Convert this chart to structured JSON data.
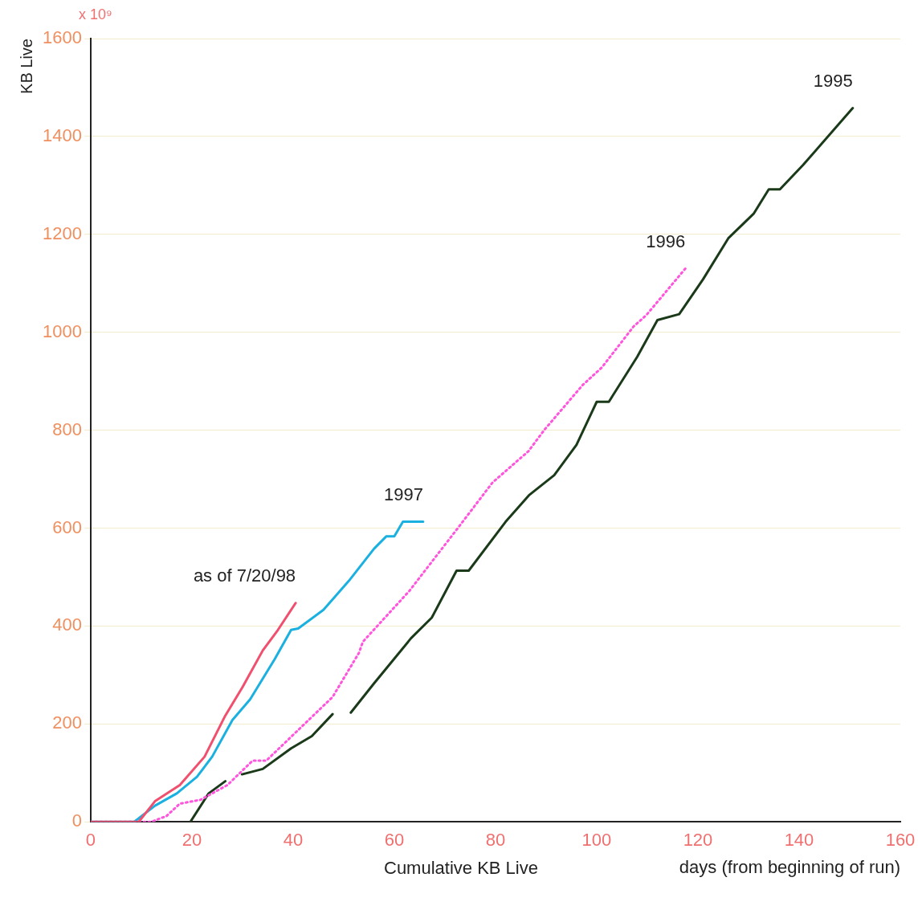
{
  "chart_data": {
    "type": "line",
    "ylabel": "KB Live",
    "xlabel": "days (from beginning of run)",
    "annotations": [
      "x 10⁹",
      "Cumulative KB Live"
    ],
    "xlim": [
      0,
      160
    ],
    "xticks": [
      0,
      20,
      40,
      60,
      80,
      100,
      120,
      140,
      160
    ],
    "ylim": [
      0,
      1600
    ],
    "yticks": [
      0,
      200,
      400,
      600,
      800,
      1000,
      1200,
      1400,
      1600
    ],
    "grid": "y",
    "legend": false,
    "marker": "none",
    "series": [
      {
        "name": "as of 7/20/98",
        "color": "#f0506e",
        "line_style": "solid",
        "x": [
          0,
          9.5,
          12.7,
          17.6,
          22.5,
          26.6,
          30,
          34,
          37,
          40.5
        ],
        "values": [
          0,
          0,
          42,
          75,
          133,
          217,
          275,
          350,
          392,
          447
        ]
      },
      {
        "name": "1997",
        "color": "#1ab0e0",
        "line_style": "solid",
        "x": [
          0,
          8.6,
          12.7,
          17,
          21,
          24,
          28,
          31.5,
          36.4,
          39.6,
          41,
          46,
          51,
          56,
          58.4,
          60,
          61.7,
          65.7
        ],
        "values": [
          0,
          0,
          33,
          58,
          92,
          133,
          208,
          250,
          333,
          392,
          395,
          433,
          492,
          558,
          583,
          583,
          613,
          613
        ]
      },
      {
        "name": "1996",
        "color": "#ff55dd",
        "line_style": "dotted",
        "x": [
          0,
          12,
          15,
          17.6,
          21.7,
          27,
          32,
          34.7,
          47.8,
          53,
          53.8,
          63,
          72.4,
          79.4,
          86.5,
          89.6,
          97.2,
          101,
          107.3,
          109.8,
          117.5
        ],
        "values": [
          0,
          0,
          12,
          37,
          45,
          75,
          125,
          125,
          255,
          345,
          368,
          472,
          598,
          693,
          757,
          800,
          892,
          928,
          1012,
          1035,
          1130
        ]
      },
      {
        "name": "1995",
        "color": "#1a3a1a",
        "line_style": "solid",
        "x": [
          19.7,
          23.3,
          26.6,
          28,
          29.9,
          34,
          39.6,
          43.7,
          47.8,
          50,
          51.4,
          56,
          63.3,
          67.4,
          72.3,
          74.7,
          82,
          86.6,
          91.6,
          96,
          100,
          102.4,
          108,
          112,
          116.3,
          121,
          126,
          131,
          134,
          136.2,
          140.8,
          150.6
        ],
        "values": [
          0,
          58,
          83,
          null,
          97,
          108,
          150,
          175,
          220,
          null,
          223,
          283,
          375,
          417,
          513,
          513,
          613,
          667,
          708,
          770,
          858,
          858,
          950,
          1025,
          1037,
          1108,
          1192,
          1242,
          1292,
          1292,
          1342,
          1458
        ]
      }
    ]
  }
}
